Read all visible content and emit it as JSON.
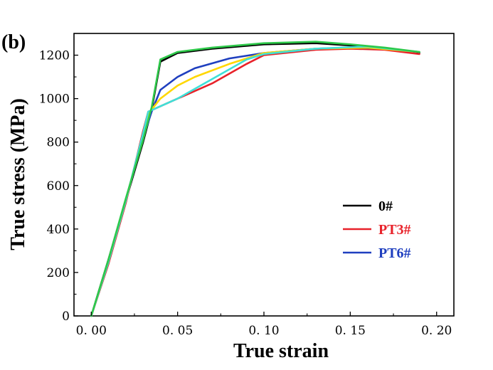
{
  "panel_label": "(b)",
  "chart_data": {
    "type": "line",
    "title": "",
    "xlabel": "True strain",
    "ylabel": "True stress (MPa)",
    "xlim": [
      -0.01,
      0.21
    ],
    "ylim": [
      0,
      1300
    ],
    "x_ticks": [
      0.0,
      0.05,
      0.1,
      0.15,
      0.2
    ],
    "x_tick_labels": [
      "0. 00",
      "0. 05",
      "0. 10",
      "0. 15",
      "0. 20"
    ],
    "y_ticks": [
      0,
      200,
      400,
      600,
      800,
      1000,
      1200
    ],
    "y_tick_labels": [
      "0",
      "200",
      "400",
      "600",
      "800",
      "1000",
      "1200"
    ],
    "grid": false,
    "legend_position": "right",
    "legend": [
      {
        "name": "0#",
        "color": "#000000"
      },
      {
        "name": "PT3#",
        "color": "#e8222a"
      },
      {
        "name": "PT6#",
        "color": "#1f3fbf"
      }
    ],
    "series": [
      {
        "name": "0#",
        "color": "#000000",
        "x": [
          0.0,
          0.01,
          0.02,
          0.03,
          0.035,
          0.04,
          0.05,
          0.07,
          0.1,
          0.13,
          0.15,
          0.17,
          0.19
        ],
        "y": [
          0,
          260,
          530,
          800,
          950,
          1170,
          1210,
          1230,
          1250,
          1255,
          1245,
          1230,
          1210
        ]
      },
      {
        "name": "PT3#",
        "color": "#e8222a",
        "x": [
          0.0,
          0.01,
          0.02,
          0.03,
          0.033,
          0.05,
          0.07,
          0.09,
          0.1,
          0.13,
          0.15,
          0.17,
          0.19
        ],
        "y": [
          0,
          240,
          520,
          850,
          940,
          1000,
          1070,
          1160,
          1200,
          1225,
          1230,
          1225,
          1205
        ]
      },
      {
        "name": "PT6#",
        "color": "#1f3fbf",
        "x": [
          0.0,
          0.01,
          0.02,
          0.03,
          0.035,
          0.04,
          0.05,
          0.06,
          0.08,
          0.1,
          0.13,
          0.15,
          0.17,
          0.19
        ],
        "y": [
          0,
          250,
          530,
          820,
          940,
          1040,
          1100,
          1140,
          1185,
          1210,
          1230,
          1235,
          1230,
          1215
        ]
      },
      {
        "name": "",
        "color": "#ffd700",
        "x": [
          0.0,
          0.01,
          0.02,
          0.03,
          0.034,
          0.04,
          0.05,
          0.06,
          0.08,
          0.1,
          0.13,
          0.16,
          0.19
        ],
        "y": [
          0,
          250,
          530,
          830,
          940,
          1000,
          1060,
          1100,
          1160,
          1210,
          1230,
          1235,
          1215
        ]
      },
      {
        "name": "",
        "color": "#3ee0d8",
        "x": [
          0.0,
          0.01,
          0.02,
          0.03,
          0.033,
          0.05,
          0.07,
          0.09,
          0.1,
          0.13,
          0.16,
          0.19
        ],
        "y": [
          0,
          250,
          530,
          840,
          940,
          1000,
          1090,
          1180,
          1205,
          1230,
          1240,
          1215
        ]
      },
      {
        "name": "",
        "color": "#2ec84a",
        "x": [
          0.0,
          0.01,
          0.02,
          0.03,
          0.035,
          0.04,
          0.05,
          0.07,
          0.1,
          0.13,
          0.15,
          0.17,
          0.19
        ],
        "y": [
          0,
          260,
          540,
          810,
          960,
          1180,
          1215,
          1235,
          1255,
          1262,
          1250,
          1235,
          1215
        ]
      }
    ]
  }
}
